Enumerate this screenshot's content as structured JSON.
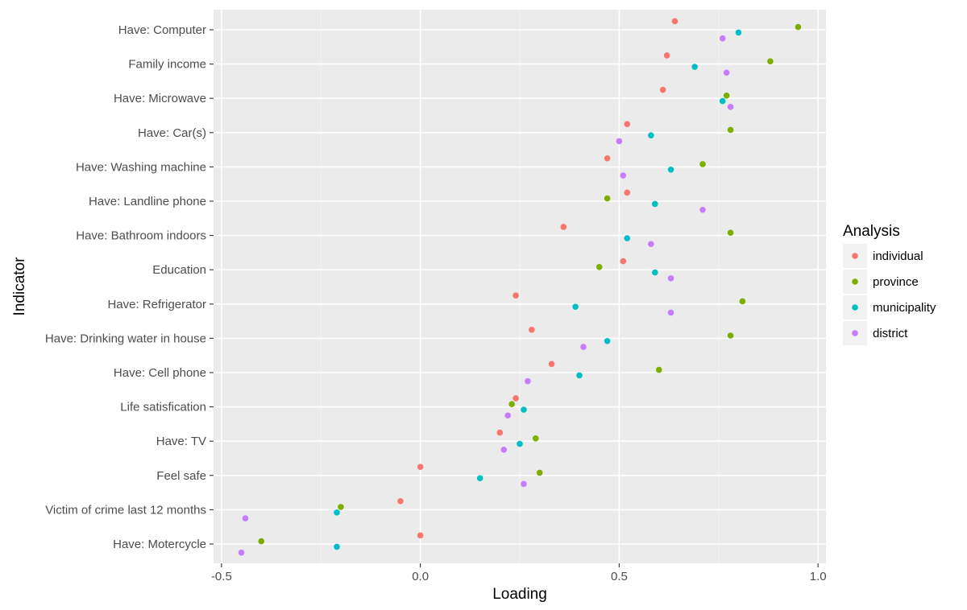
{
  "chart_data": {
    "type": "scatter",
    "xlabel": "Loading",
    "ylabel": "Indicator",
    "xlim": [
      -0.52,
      1.02
    ],
    "xticks": [
      -0.5,
      0.0,
      0.5,
      1.0
    ],
    "xtick_labels": [
      "-0.5",
      "0.0",
      "0.5",
      "1.0"
    ],
    "grid": true,
    "background": "#ebebeb",
    "legend": {
      "title": "Analysis",
      "placement": "right"
    },
    "categories": [
      "Have: Computer",
      "Family income",
      "Have: Microwave",
      "Have: Car(s)",
      "Have: Washing machine",
      "Have: Landline phone",
      "Have: Bathroom indoors",
      "Education",
      "Have: Refrigerator",
      "Have: Drinking water in house",
      "Have: Cell phone",
      "Life satisfication",
      "Have: TV",
      "Feel safe",
      "Victim of crime last 12 months",
      "Have: Motercycle"
    ],
    "series": [
      {
        "name": "individual",
        "color": "#f8766d",
        "offset": -0.25,
        "values": [
          0.64,
          0.62,
          0.61,
          0.52,
          0.47,
          0.52,
          0.36,
          0.51,
          0.24,
          0.28,
          0.33,
          0.24,
          0.2,
          0.0,
          -0.05,
          0.0
        ]
      },
      {
        "name": "province",
        "color": "#7cae00",
        "offset": -0.08,
        "values": [
          0.95,
          0.88,
          0.77,
          0.78,
          0.71,
          0.47,
          0.78,
          0.45,
          0.81,
          0.78,
          0.6,
          0.23,
          0.29,
          0.3,
          -0.2,
          -0.4
        ]
      },
      {
        "name": "municipality",
        "color": "#00bfc4",
        "offset": 0.08,
        "values": [
          0.8,
          0.69,
          0.76,
          0.58,
          0.63,
          0.59,
          0.52,
          0.59,
          0.39,
          0.47,
          0.4,
          0.26,
          0.25,
          0.15,
          -0.21,
          -0.21
        ]
      },
      {
        "name": "district",
        "color": "#c77cff",
        "offset": 0.25,
        "values": [
          0.76,
          0.77,
          0.78,
          0.5,
          0.51,
          0.71,
          0.58,
          0.63,
          0.63,
          0.41,
          0.27,
          0.22,
          0.21,
          0.26,
          -0.44,
          -0.45
        ]
      }
    ]
  }
}
